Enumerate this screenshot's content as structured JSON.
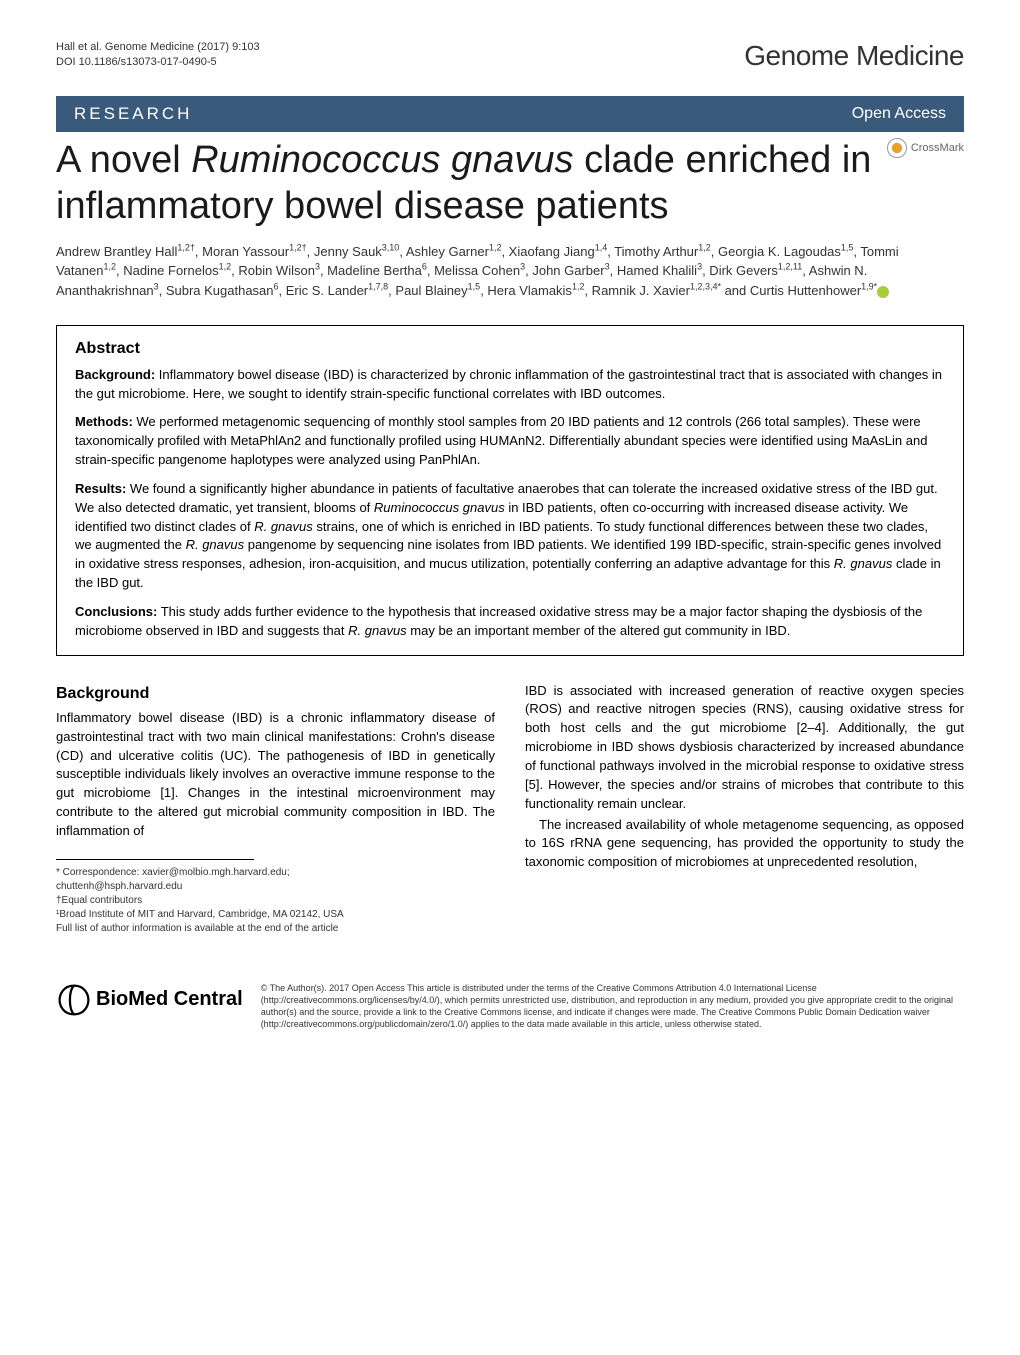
{
  "header": {
    "citation_line1": "Hall et al. Genome Medicine  (2017) 9:103",
    "citation_line2": "DOI 10.1186/s13073-017-0490-5",
    "journal_brand": "Genome Medicine"
  },
  "bar": {
    "research": "RESEARCH",
    "open_access": "Open Access"
  },
  "crossmark": "CrossMark",
  "title": {
    "line1_pre": "A novel ",
    "line1_italic": "Ruminococcus gnavus",
    "line1_post": " clade",
    "line2": "enriched in inflammatory bowel disease patients"
  },
  "authors_html": "Andrew Brantley Hall<sup>1,2†</sup>, Moran Yassour<sup>1,2†</sup>, Jenny Sauk<sup>3,10</sup>, Ashley Garner<sup>1,2</sup>, Xiaofang Jiang<sup>1,4</sup>, Timothy Arthur<sup>1,2</sup>, Georgia K. Lagoudas<sup>1,5</sup>, Tommi Vatanen<sup>1,2</sup>, Nadine Fornelos<sup>1,2</sup>, Robin Wilson<sup>3</sup>, Madeline Bertha<sup>6</sup>, Melissa Cohen<sup>3</sup>, John Garber<sup>3</sup>, Hamed Khalili<sup>3</sup>, Dirk Gevers<sup>1,2,11</sup>, Ashwin N. Ananthakrishnan<sup>3</sup>, Subra Kugathasan<sup>6</sup>, Eric S. Lander<sup>1,7,8</sup>, Paul Blainey<sup>1,5</sup>, Hera Vlamakis<sup>1,2</sup>, Ramnik J. Xavier<sup>1,2,3,4*</sup> and Curtis Huttenhower<sup>1,9*</sup>",
  "abstract": {
    "heading": "Abstract",
    "background_label": "Background:",
    "background_text": " Inflammatory bowel disease (IBD) is characterized by chronic inflammation of the gastrointestinal tract that is associated with changes in the gut microbiome. Here, we sought to identify strain-specific functional correlates with IBD outcomes.",
    "methods_label": "Methods:",
    "methods_text": " We performed metagenomic sequencing of monthly stool samples from 20 IBD patients and 12 controls (266 total samples). These were taxonomically profiled with MetaPhlAn2 and functionally profiled using HUMAnN2. Differentially abundant species were identified using MaAsLin and strain-specific pangenome haplotypes were analyzed using PanPhlAn.",
    "results_label": "Results:",
    "results_text_pre": " We found a significantly higher abundance in patients of facultative anaerobes that can tolerate the increased oxidative stress of the IBD gut. We also detected dramatic, yet transient, blooms of ",
    "results_italic1": "Ruminococcus gnavus",
    "results_text_mid1": " in IBD patients, often co-occurring with increased disease activity. We identified two distinct clades of ",
    "results_italic2": "R. gnavus",
    "results_text_mid2": " strains, one of which is enriched in IBD patients. To study functional differences between these two clades, we augmented the ",
    "results_italic3": "R. gnavus",
    "results_text_mid3": " pangenome by sequencing nine isolates from IBD patients. We identified 199 IBD-specific, strain-specific genes involved in oxidative stress responses, adhesion, iron-acquisition, and mucus utilization, potentially conferring an adaptive advantage for this ",
    "results_italic4": "R. gnavus",
    "results_text_post": " clade in the IBD gut.",
    "conclusions_label": "Conclusions:",
    "conclusions_text_pre": " This study adds further evidence to the hypothesis that increased oxidative stress may be a major factor shaping the dysbiosis of the microbiome observed in IBD and suggests that ",
    "conclusions_italic": "R. gnavus",
    "conclusions_text_post": " may be an important member of the altered gut community in IBD."
  },
  "body": {
    "background_heading": "Background",
    "col1_p1": "Inflammatory bowel disease (IBD) is a chronic inflammatory disease of gastrointestinal tract with two main clinical manifestations: Crohn's disease (CD) and ulcerative colitis (UC). The pathogenesis of IBD in genetically susceptible individuals likely involves an overactive immune response to the gut microbiome [1]. Changes in the intestinal microenvironment may contribute to the altered gut microbial community composition in IBD. The inflammation of",
    "col2_p1": "IBD is associated with increased generation of reactive oxygen species (ROS) and reactive nitrogen species (RNS), causing oxidative stress for both host cells and the gut microbiome [2–4]. Additionally, the gut microbiome in IBD shows dysbiosis characterized by increased abundance of functional pathways involved in the microbial response to oxidative stress [5]. However, the species and/or strains of microbes that contribute to this functionality remain unclear.",
    "col2_p2": "The increased availability of whole metagenome sequencing, as opposed to 16S rRNA gene sequencing, has provided the opportunity to study the taxonomic composition of microbiomes at unprecedented resolution,"
  },
  "footnotes": {
    "correspondence": "* Correspondence: xavier@molbio.mgh.harvard.edu;",
    "email2": "chuttenh@hsph.harvard.edu",
    "equal": "†Equal contributors",
    "affil1": "¹Broad Institute of MIT and Harvard, Cambridge, MA 02142, USA",
    "fulllist": "Full list of author information is available at the end of the article"
  },
  "footer": {
    "bmc_text": "BioMed Central",
    "license": "© The Author(s). 2017 Open Access This article is distributed under the terms of the Creative Commons Attribution 4.0 International License (http://creativecommons.org/licenses/by/4.0/), which permits unrestricted use, distribution, and reproduction in any medium, provided you give appropriate credit to the original author(s) and the source, provide a link to the Creative Commons license, and indicate if changes were made. The Creative Commons Public Domain Dedication waiver (http://creativecommons.org/publicdomain/zero/1.0/) applies to the data made available in this article, unless otherwise stated."
  },
  "colors": {
    "bar_bg": "#395a7a",
    "bar_text": "#ffffff",
    "text": "#000000",
    "orcid": "#a6ce39",
    "crossmark_dot": "#e8a030"
  }
}
